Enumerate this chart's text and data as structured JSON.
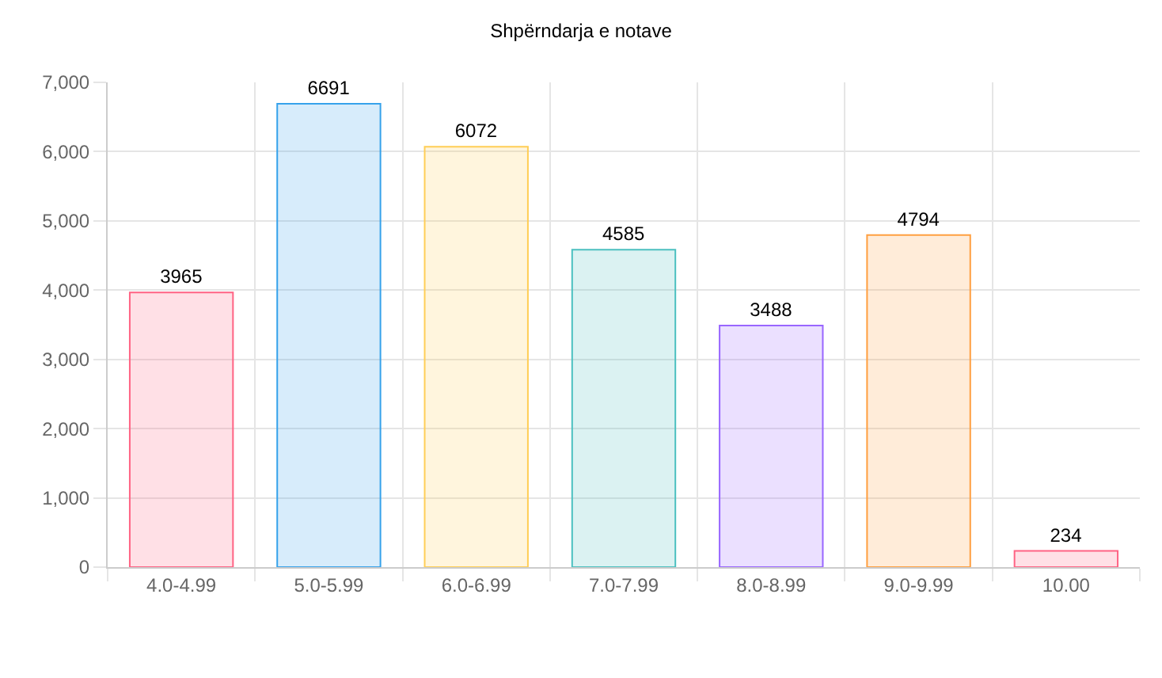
{
  "chart_data": {
    "type": "bar",
    "title": "Shpërndarja e notave",
    "categories": [
      "4.0-4.99",
      "5.0-5.99",
      "6.0-6.99",
      "7.0-7.99",
      "8.0-8.99",
      "9.0-9.99",
      "10.00"
    ],
    "values": [
      3965,
      6691,
      6072,
      4585,
      3488,
      4794,
      234
    ],
    "colors": [
      "#ff6384",
      "#36a2eb",
      "#ffce56",
      "#4bc0c0",
      "#9966ff",
      "#ff9f40",
      "#ff6384"
    ],
    "ylim": [
      0,
      7000
    ],
    "yticks": [
      0,
      {
        "value": 1000,
        "label": "1,000"
      },
      {
        "value": 2000,
        "label": "2,000"
      },
      {
        "value": 3000,
        "label": "3,000"
      },
      {
        "value": 4000,
        "label": "4,000"
      },
      {
        "value": 5000,
        "label": "5,000"
      },
      {
        "value": 6000,
        "label": "6,000"
      },
      {
        "value": 7000,
        "label": "7,000"
      }
    ],
    "grid": true,
    "data_labels": true
  }
}
